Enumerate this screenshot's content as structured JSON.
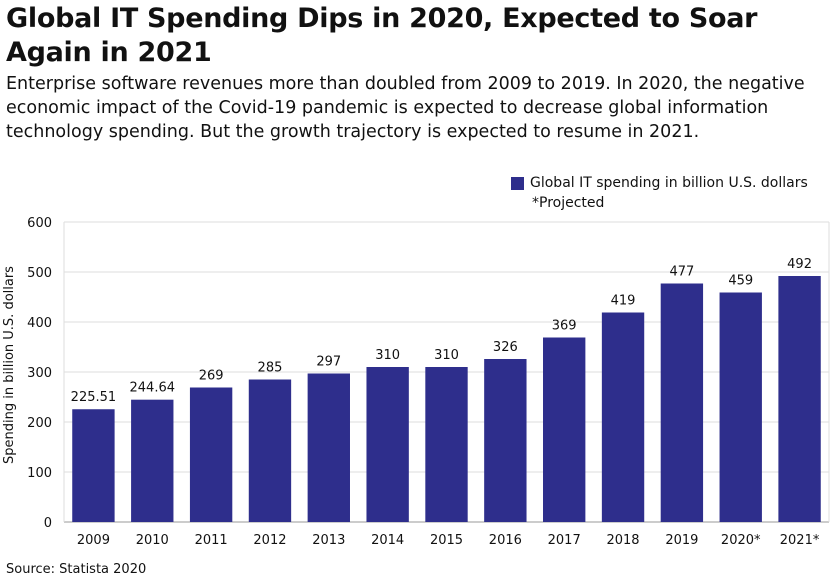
{
  "title": "Global IT Spending Dips in 2020, Expected to Soar Again in 2021",
  "subtitle": "Enterprise software revenues more than doubled from 2009 to 2019. In 2020, the negative economic impact of the Covid-19 pandemic is expected to decrease global information technology spending. But the growth trajectory is expected to resume in 2021.",
  "legend": {
    "series_label": "Global IT spending in billion U.S. dollars",
    "note": "*Projected"
  },
  "source": "Source: Statista 2020",
  "colors": {
    "bar": "#2e2e8c",
    "grid": "#dddddd",
    "axis": "#999999"
  },
  "chart_data": {
    "type": "bar",
    "categories": [
      "2009",
      "2010",
      "2011",
      "2012",
      "2013",
      "2014",
      "2015",
      "2016",
      "2017",
      "2018",
      "2019",
      "2020*",
      "2021*"
    ],
    "series": [
      {
        "name": "Global IT spending in billion U.S. dollars",
        "values": [
          225.51,
          244.64,
          269,
          285,
          297,
          310,
          310,
          326,
          369,
          419,
          477,
          459,
          492
        ]
      }
    ],
    "value_labels": [
      "225.51",
      "244.64",
      "269",
      "285",
      "297",
      "310",
      "310",
      "326",
      "369",
      "419",
      "477",
      "459",
      "492"
    ],
    "ylabel": "Spending in billion U.S. dollars",
    "xlabel": "",
    "ylim": [
      0,
      600
    ],
    "yticks": [
      0,
      100,
      200,
      300,
      400,
      500,
      600
    ],
    "grid": true,
    "legend_position": "top-right"
  }
}
